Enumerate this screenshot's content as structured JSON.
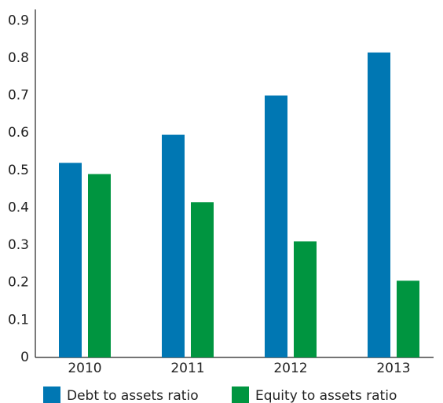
{
  "chart_data": {
    "type": "bar",
    "categories": [
      "2010",
      "2011",
      "2012",
      "2013"
    ],
    "series": [
      {
        "name": "Debt to assets ratio",
        "color": "#0077b3",
        "values": [
          0.52,
          0.595,
          0.7,
          0.815
        ]
      },
      {
        "name": "Equity to assets ratio",
        "color": "#009540",
        "values": [
          0.49,
          0.415,
          0.31,
          0.205
        ]
      }
    ],
    "ylim": [
      0,
      0.93
    ],
    "yticks": [
      0,
      0.1,
      0.2,
      0.3,
      0.4,
      0.5,
      0.6,
      0.7,
      0.8,
      0.9
    ],
    "grid": false
  }
}
